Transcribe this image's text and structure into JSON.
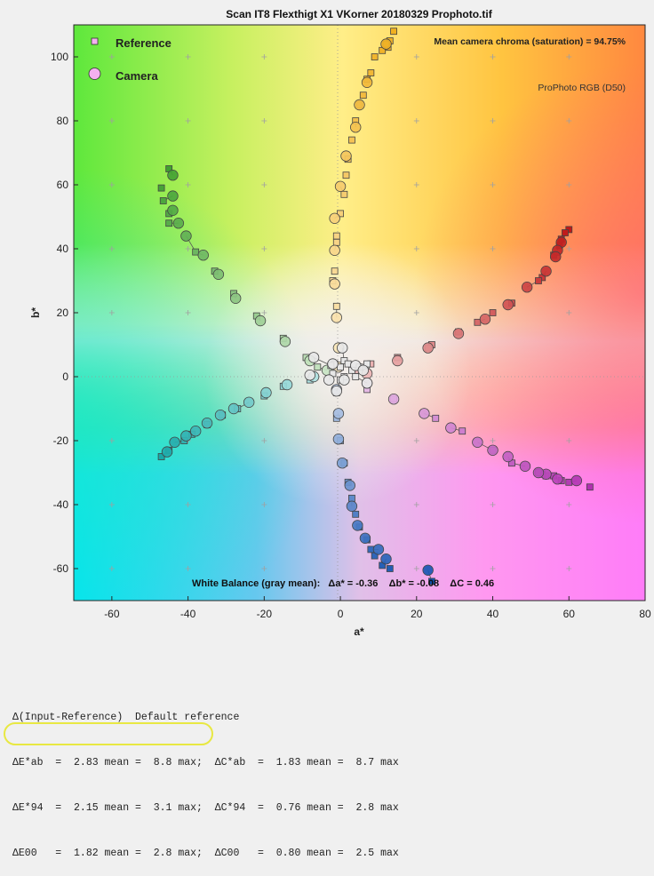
{
  "chart_data": {
    "type": "scatter",
    "title": "Scan IT8 Flexthigt X1 VKorner 20180329 Prophoto.tif",
    "xlabel": "a*",
    "ylabel": "b*",
    "xlim": [
      -70,
      80
    ],
    "ylim": [
      -70,
      110
    ],
    "xticks": [
      "-60",
      "-40",
      "-20",
      "0",
      "20",
      "40",
      "60",
      "80"
    ],
    "yticks": [
      "-60",
      "-40",
      "-20",
      "0",
      "20",
      "40",
      "60",
      "80",
      "100"
    ],
    "grid": false,
    "legend_position": "top-left",
    "legend": {
      "reference": "Reference",
      "camera": "Camera"
    },
    "annotations": {
      "chroma": "Mean camera chroma (saturation) = 94.75%",
      "colorspace": "ProPhoto RGB (D50)",
      "white_balance": "White Balance (gray mean):   Δa* = -0.36    Δb* = -0.08    ΔC = 0.46"
    },
    "series": [
      {
        "hue": "yellow",
        "color": "#f0b020",
        "reference": [
          [
            14,
            108
          ],
          [
            13,
            105
          ],
          [
            12.5,
            103
          ],
          [
            12,
            104
          ],
          [
            11,
            102
          ],
          [
            9,
            100
          ],
          [
            8,
            95
          ],
          [
            7,
            93
          ],
          [
            6,
            88
          ],
          [
            5,
            85
          ],
          [
            4,
            80
          ],
          [
            3,
            74
          ],
          [
            2,
            68
          ],
          [
            1.5,
            63
          ],
          [
            1,
            57
          ],
          [
            0,
            51
          ],
          [
            -1,
            44
          ],
          [
            -1,
            42
          ],
          [
            -1.5,
            33
          ],
          [
            -2,
            30
          ],
          [
            -1,
            22
          ]
        ],
        "camera": [
          [
            12,
            104
          ],
          [
            7,
            92
          ],
          [
            5,
            85
          ],
          [
            4,
            78
          ],
          [
            1.5,
            69
          ],
          [
            0,
            59.5
          ],
          [
            -1.5,
            49.5
          ],
          [
            -1.5,
            39.5
          ],
          [
            -1.5,
            29
          ],
          [
            -1,
            18.5
          ],
          [
            -0.5,
            9
          ],
          [
            -0.5,
            3
          ]
        ]
      },
      {
        "hue": "red",
        "color": "#c01818",
        "reference": [
          [
            60,
            46
          ],
          [
            59,
            45
          ],
          [
            58,
            43
          ],
          [
            57.5,
            41
          ],
          [
            56,
            38
          ],
          [
            53,
            31
          ],
          [
            52,
            30
          ],
          [
            45,
            23
          ],
          [
            40,
            20
          ],
          [
            36,
            17
          ],
          [
            31,
            14
          ],
          [
            24,
            10
          ],
          [
            23,
            9
          ],
          [
            15,
            6
          ],
          [
            8,
            4
          ],
          [
            4,
            2
          ]
        ],
        "camera": [
          [
            58,
            42
          ],
          [
            57,
            39.5
          ],
          [
            56.5,
            37.5
          ],
          [
            54,
            33
          ],
          [
            49,
            28
          ],
          [
            44,
            22.5
          ],
          [
            38,
            18
          ],
          [
            31,
            13.5
          ],
          [
            23,
            9
          ],
          [
            15,
            5
          ],
          [
            7,
            1
          ]
        ]
      },
      {
        "hue": "magenta",
        "color": "#b030b0",
        "reference": [
          [
            65.5,
            -34.5
          ],
          [
            60,
            -33
          ],
          [
            58,
            -32.5
          ],
          [
            56,
            -31
          ],
          [
            54,
            -31
          ],
          [
            53,
            -30.5
          ],
          [
            52,
            -30
          ],
          [
            45,
            -27
          ],
          [
            40,
            -23
          ],
          [
            32,
            -17
          ],
          [
            25,
            -13
          ],
          [
            14,
            -7
          ],
          [
            7,
            -4
          ]
        ],
        "camera": [
          [
            62,
            -32.5
          ],
          [
            57,
            -32
          ],
          [
            54,
            -30.5
          ],
          [
            52,
            -30
          ],
          [
            48.5,
            -28
          ],
          [
            44,
            -25
          ],
          [
            40,
            -23
          ],
          [
            36,
            -20.5
          ],
          [
            29,
            -16
          ],
          [
            22,
            -11.5
          ],
          [
            14,
            -7
          ],
          [
            7,
            -2
          ]
        ]
      },
      {
        "hue": "blue",
        "color": "#1050b0",
        "reference": [
          [
            24,
            -64
          ],
          [
            13,
            -60
          ],
          [
            11,
            -59
          ],
          [
            9,
            -56
          ],
          [
            8,
            -54
          ],
          [
            7,
            -51
          ],
          [
            5,
            -47
          ],
          [
            4,
            -43
          ],
          [
            3,
            -38
          ],
          [
            2,
            -33
          ],
          [
            1,
            -27
          ],
          [
            0,
            -20
          ],
          [
            -1,
            -13
          ],
          [
            -1,
            -5
          ]
        ],
        "camera": [
          [
            23,
            -60.5
          ],
          [
            12,
            -57
          ],
          [
            10,
            -54
          ],
          [
            6.5,
            -50.5
          ],
          [
            4.5,
            -46.5
          ],
          [
            3,
            -40.5
          ],
          [
            2.5,
            -34
          ],
          [
            0.5,
            -27
          ],
          [
            -0.5,
            -19.5
          ],
          [
            -0.5,
            -11.5
          ],
          [
            -1,
            -4
          ]
        ]
      },
      {
        "hue": "cyan",
        "color": "#18a8a8",
        "reference": [
          [
            -47,
            -25
          ],
          [
            -45,
            -23
          ],
          [
            -41,
            -20
          ],
          [
            -39,
            -18
          ],
          [
            -35,
            -15
          ],
          [
            -31,
            -12
          ],
          [
            -27,
            -10
          ],
          [
            -20,
            -6
          ],
          [
            -15,
            -3
          ],
          [
            -8,
            -1
          ]
        ],
        "camera": [
          [
            -45.5,
            -23.5
          ],
          [
            -43.5,
            -20.5
          ],
          [
            -40.5,
            -18.5
          ],
          [
            -38,
            -17
          ],
          [
            -35,
            -14.5
          ],
          [
            -31.5,
            -12
          ],
          [
            -28,
            -10
          ],
          [
            -24,
            -8
          ],
          [
            -19.5,
            -5
          ],
          [
            -14,
            -2.5
          ],
          [
            -7,
            0
          ]
        ]
      },
      {
        "hue": "green",
        "color": "#40a030",
        "reference": [
          [
            -45,
            65
          ],
          [
            -47,
            59
          ],
          [
            -46.5,
            55
          ],
          [
            -45,
            51
          ],
          [
            -45,
            48
          ],
          [
            -38,
            39
          ],
          [
            -33,
            33
          ],
          [
            -28,
            26
          ],
          [
            -22,
            19
          ],
          [
            -15,
            12
          ],
          [
            -9,
            6
          ],
          [
            -6,
            3
          ]
        ],
        "camera": [
          [
            -44,
            63
          ],
          [
            -44,
            56.5
          ],
          [
            -44,
            52
          ],
          [
            -42.5,
            48
          ],
          [
            -40.5,
            44
          ],
          [
            -36,
            38
          ],
          [
            -32,
            32
          ],
          [
            -27.5,
            24.5
          ],
          [
            -21,
            17.5
          ],
          [
            -14.5,
            11
          ],
          [
            -8,
            5
          ],
          [
            -3.5,
            2
          ]
        ]
      },
      {
        "hue": "neutral",
        "color": "#b8b8b8",
        "reference": [
          [
            -1.5,
            4
          ],
          [
            -2.5,
            3.5
          ],
          [
            0,
            3
          ],
          [
            1,
            5
          ],
          [
            2,
            4
          ],
          [
            3,
            2
          ],
          [
            5,
            3
          ],
          [
            7,
            4
          ],
          [
            4,
            0
          ],
          [
            1,
            0
          ],
          [
            -2,
            1
          ],
          [
            0,
            -1
          ]
        ],
        "camera": [
          [
            -8,
            0.5
          ],
          [
            -7,
            6
          ],
          [
            -2,
            4
          ],
          [
            0.5,
            9
          ],
          [
            4,
            3.5
          ],
          [
            6,
            2
          ],
          [
            7,
            -2
          ],
          [
            -1,
            -4.5
          ],
          [
            -3,
            -1
          ],
          [
            1,
            -1
          ]
        ]
      }
    ]
  },
  "stats": {
    "header": "Δ(Input-Reference)  Default reference",
    "line1": "ΔE*ab  =  2.83 mean =  8.8 max;  ΔC*ab  =  1.83 mean =  8.7 max",
    "line2": "ΔE*94  =  2.15 mean =  3.1 max;  ΔC*94  =  0.76 mean =  2.8 max",
    "line3": "ΔE00   =  1.82 mean =  2.8 max;  ΔC00   =  0.80 mean =  2.5 max"
  }
}
